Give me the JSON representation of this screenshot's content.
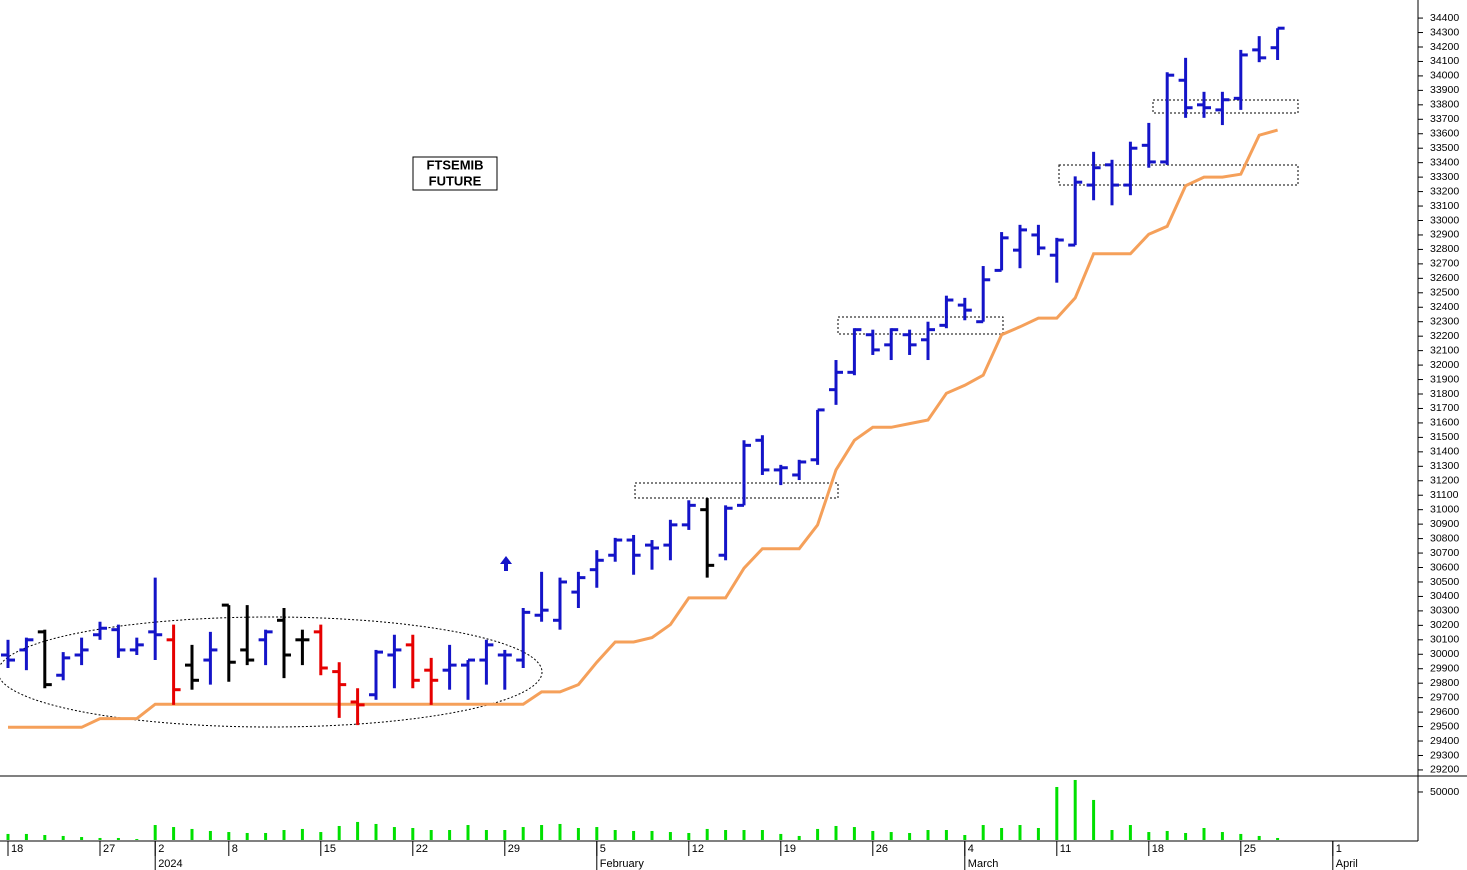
{
  "chart_data": [
    {
      "type": "ohlc",
      "annotations": [
        "FTSEMIB",
        "FUTURE"
      ],
      "categories": [
        "18",
        null,
        null,
        null,
        null,
        "27",
        null,
        null,
        "2",
        null,
        null,
        null,
        "8",
        null,
        null,
        null,
        null,
        "15",
        null,
        null,
        null,
        null,
        "22",
        null,
        null,
        null,
        null,
        "29",
        null,
        null,
        null,
        null,
        "5",
        null,
        null,
        null,
        null,
        "12",
        null,
        null,
        null,
        null,
        "19",
        null,
        null,
        null,
        null,
        "26",
        null,
        null,
        null,
        null,
        "4",
        null,
        null,
        null,
        null,
        "11",
        null,
        null,
        null,
        null,
        "18",
        null,
        null,
        null,
        null,
        "25",
        null,
        null,
        null,
        null,
        "1"
      ],
      "periods": [
        null,
        null,
        null,
        null,
        null,
        null,
        null,
        null,
        "2024",
        null,
        null,
        null,
        null,
        null,
        null,
        null,
        null,
        null,
        null,
        null,
        null,
        null,
        null,
        null,
        null,
        null,
        null,
        null,
        null,
        null,
        null,
        null,
        "February",
        null,
        null,
        null,
        null,
        null,
        null,
        null,
        null,
        null,
        null,
        null,
        null,
        null,
        null,
        null,
        null,
        null,
        null,
        null,
        "March",
        null,
        null,
        null,
        null,
        null,
        null,
        null,
        null,
        null,
        null,
        null,
        null,
        null,
        null,
        null,
        null,
        null,
        null,
        null,
        "April"
      ],
      "open": [
        29995,
        30030,
        30155,
        29855,
        29995,
        30135,
        30170,
        30030,
        30155,
        30100,
        29925,
        29960,
        30340,
        30030,
        30100,
        30235,
        30100,
        30155,
        29880,
        29670,
        29720,
        29995,
        30065,
        29890,
        29890,
        29925,
        29960,
        29995,
        29960,
        30270,
        30235,
        30430,
        30585,
        30685,
        30790,
        30755,
        30755,
        30895,
        31000,
        30685,
        31030,
        31480,
        31275,
        31240,
        31345,
        31830,
        31950,
        32210,
        32140,
        32210,
        32175,
        32275,
        32415,
        32300,
        32655,
        32795,
        32900,
        32760,
        32830,
        33245,
        33385,
        33245,
        33520,
        33405,
        33970,
        33800,
        33765,
        33845,
        34180,
        34195,
        null,
        null,
        null
      ],
      "high": [
        30100,
        30115,
        30170,
        30015,
        30115,
        30225,
        30205,
        30115,
        30530,
        30205,
        30065,
        30155,
        30340,
        30340,
        30170,
        30320,
        30170,
        30205,
        29945,
        29765,
        30030,
        30135,
        30135,
        29975,
        30065,
        29960,
        30100,
        30030,
        30320,
        30570,
        30530,
        30570,
        30720,
        30805,
        30825,
        30790,
        30930,
        31065,
        31080,
        31030,
        31480,
        31515,
        31310,
        31345,
        31690,
        32035,
        32255,
        32245,
        32255,
        32245,
        32300,
        32480,
        32465,
        32685,
        32920,
        32970,
        32970,
        32880,
        33305,
        33475,
        33420,
        33545,
        33675,
        34025,
        34125,
        33890,
        33890,
        34180,
        34275,
        34330,
        null,
        null,
        null
      ],
      "low": [
        29905,
        29890,
        29765,
        29820,
        29925,
        30100,
        29975,
        29995,
        29960,
        29650,
        29755,
        29790,
        29810,
        29925,
        29925,
        29835,
        29925,
        29855,
        29560,
        29510,
        29685,
        29765,
        29765,
        29650,
        29755,
        29685,
        29790,
        29755,
        29905,
        30225,
        30170,
        30320,
        30460,
        30640,
        30550,
        30585,
        30650,
        30860,
        30530,
        30650,
        31030,
        31240,
        31170,
        31205,
        31310,
        31725,
        31930,
        32070,
        32035,
        32070,
        32035,
        32255,
        32310,
        32300,
        32655,
        32670,
        32760,
        32570,
        32830,
        33140,
        33105,
        33175,
        33365,
        33385,
        33710,
        33710,
        33660,
        33765,
        34095,
        34110,
        null,
        null,
        null
      ],
      "close": [
        29960,
        30100,
        29790,
        29975,
        30030,
        30180,
        30030,
        30065,
        30135,
        29755,
        29820,
        30030,
        29945,
        29960,
        30155,
        29995,
        30100,
        29905,
        29790,
        29650,
        30015,
        30030,
        29820,
        29820,
        29925,
        29960,
        30065,
        29995,
        30290,
        30305,
        30500,
        30530,
        30650,
        30790,
        30685,
        30735,
        30895,
        31030,
        30615,
        31010,
        31445,
        31275,
        31290,
        31330,
        31690,
        31950,
        32245,
        32105,
        32245,
        32140,
        32245,
        32450,
        32380,
        32590,
        32880,
        32935,
        32810,
        32865,
        33265,
        33365,
        33245,
        33500,
        33405,
        34005,
        33780,
        33780,
        33835,
        34145,
        34125,
        34330,
        null,
        null,
        null
      ],
      "bar_colors": [
        "#1414c8",
        "#1414c8",
        "#000000",
        "#1414c8",
        "#1414c8",
        "#1414c8",
        "#1414c8",
        "#1414c8",
        "#1414c8",
        "#e60000",
        "#000000",
        "#1414c8",
        "#000000",
        "#000000",
        "#1414c8",
        "#000000",
        "#000000",
        "#e60000",
        "#e60000",
        "#e60000",
        "#1414c8",
        "#1414c8",
        "#e60000",
        "#e60000",
        "#1414c8",
        "#1414c8",
        "#1414c8",
        "#1414c8",
        "#1414c8",
        "#1414c8",
        "#1414c8",
        "#1414c8",
        "#1414c8",
        "#1414c8",
        "#1414c8",
        "#1414c8",
        "#1414c8",
        "#1414c8",
        "#000000",
        "#1414c8",
        "#1414c8",
        "#1414c8",
        "#1414c8",
        "#1414c8",
        "#1414c8",
        "#1414c8",
        "#1414c8",
        "#1414c8",
        "#1414c8",
        "#1414c8",
        "#1414c8",
        "#1414c8",
        "#1414c8",
        "#1414c8",
        "#1414c8",
        "#1414c8",
        "#1414c8",
        "#1414c8",
        "#1414c8",
        "#1414c8",
        "#1414c8",
        "#1414c8",
        "#1414c8",
        "#1414c8",
        "#1414c8",
        "#1414c8",
        "#1414c8",
        "#1414c8",
        "#1414c8",
        "#1414c8",
        null,
        null,
        null
      ],
      "overlay": {
        "color": "#f5a05a",
        "values": [
          29495,
          29495,
          29495,
          29495,
          29495,
          29555,
          29555,
          29555,
          29655,
          29655,
          29655,
          29655,
          29655,
          29655,
          29655,
          29655,
          29655,
          29655,
          29655,
          29655,
          29655,
          29655,
          29655,
          29655,
          29655,
          29655,
          29655,
          29655,
          29655,
          29740,
          29740,
          29790,
          29945,
          30085,
          30085,
          30115,
          30205,
          30390,
          30390,
          30390,
          30595,
          30730,
          30730,
          30730,
          30895,
          31275,
          31480,
          31570,
          31570,
          31595,
          31620,
          31805,
          31860,
          31930,
          32210,
          32265,
          32325,
          32325,
          32465,
          32770,
          32770,
          32770,
          32905,
          32960,
          33240,
          33300,
          33300,
          33320,
          33590,
          33625,
          null,
          null,
          null
        ]
      },
      "ylim": [
        29165,
        34525
      ],
      "yticks": [
        29200,
        29300,
        29400,
        29500,
        29600,
        29700,
        29800,
        29900,
        30000,
        30100,
        30200,
        30300,
        30400,
        30500,
        30600,
        30700,
        30800,
        30900,
        31000,
        31100,
        31200,
        31300,
        31400,
        31500,
        31600,
        31700,
        31800,
        31900,
        32000,
        32100,
        32200,
        32300,
        32400,
        32500,
        32600,
        32700,
        32800,
        32900,
        33000,
        33100,
        33200,
        33300,
        33400,
        33500,
        33600,
        33700,
        33800,
        33900,
        34000,
        34100,
        34200,
        34300,
        34400
      ]
    },
    {
      "type": "bar",
      "color": "#00e000",
      "values": [
        6300,
        6300,
        5200,
        4200,
        3100,
        2100,
        2100,
        1000,
        15600,
        13500,
        11500,
        9400,
        8300,
        7300,
        7300,
        10400,
        11500,
        8300,
        14600,
        18800,
        16700,
        13500,
        12500,
        10400,
        10400,
        15600,
        10400,
        10400,
        13500,
        15600,
        16700,
        12500,
        13500,
        10400,
        9400,
        9400,
        8300,
        7300,
        11500,
        10400,
        10400,
        10400,
        6300,
        4200,
        11500,
        14600,
        13500,
        9400,
        8300,
        7300,
        10400,
        10400,
        5200,
        15600,
        12500,
        15600,
        12500,
        55200,
        62500,
        41700,
        10400,
        15600,
        8300,
        9400,
        7300,
        12500,
        8300,
        6300,
        4200,
        2100,
        null,
        null,
        null
      ],
      "ylim": [
        0,
        65600
      ],
      "yticks": [
        50000
      ]
    }
  ]
}
